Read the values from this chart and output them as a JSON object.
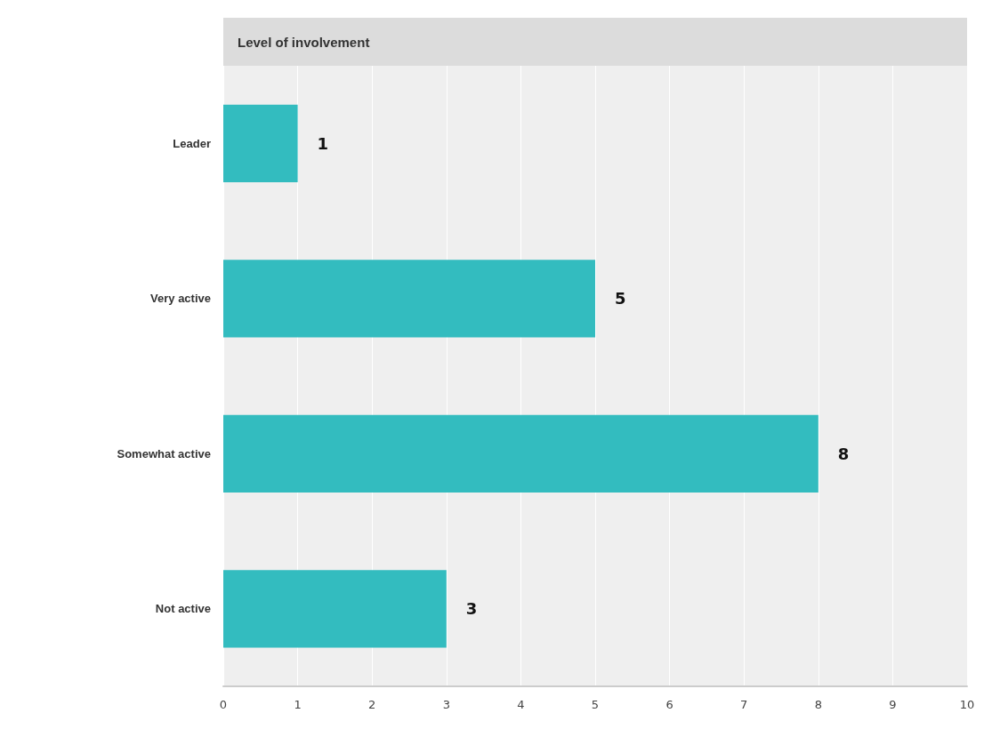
{
  "chart_data": {
    "type": "bar",
    "orientation": "horizontal",
    "title": "Level of involvement",
    "categories": [
      "Leader",
      "Very active",
      "Somewhat active",
      "Not active"
    ],
    "values": [
      1,
      5,
      8,
      3
    ],
    "color": "#33bcbf",
    "xlim": [
      0,
      10
    ],
    "xticks": [
      0,
      1,
      2,
      3,
      4,
      5,
      6,
      7,
      8,
      9,
      10
    ],
    "grid": "x",
    "data_labels": true
  }
}
